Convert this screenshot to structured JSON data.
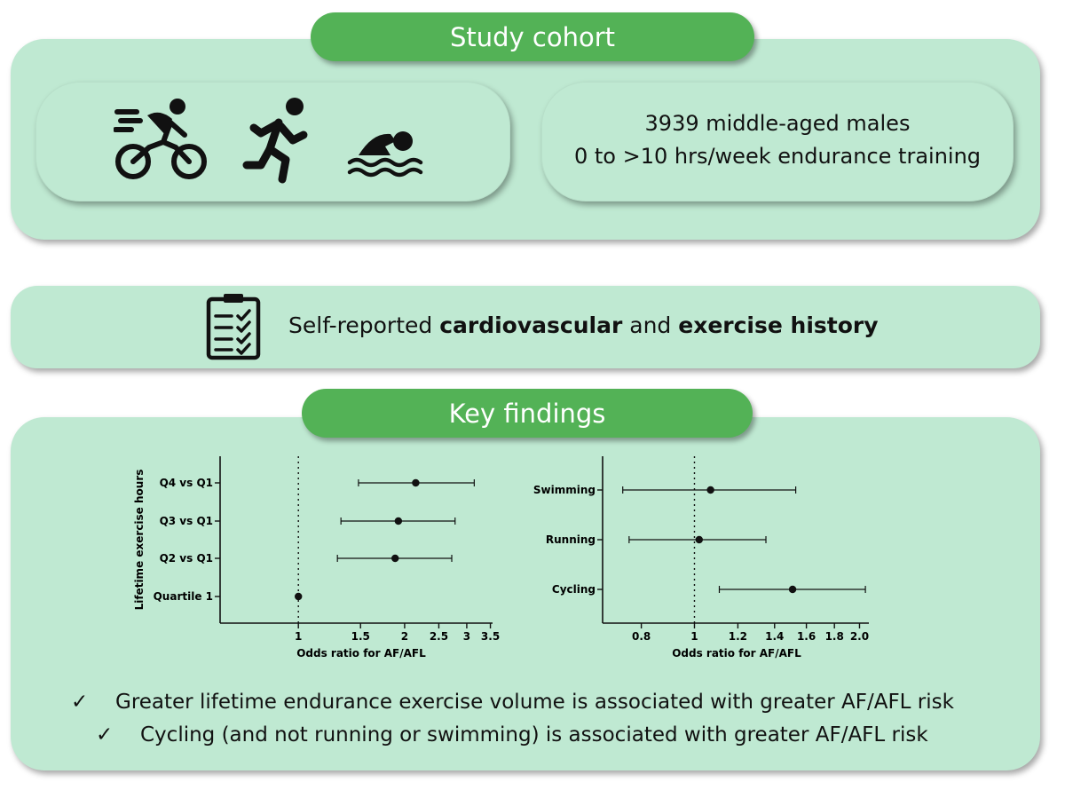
{
  "study_cohort": {
    "title": "Study cohort",
    "icons": [
      "cyclist-icon",
      "runner-icon",
      "swimmer-icon"
    ],
    "line1": "3939 middle-aged males",
    "line2": "0 to >10 hrs/week endurance training"
  },
  "history": {
    "icon": "clipboard-checklist-icon",
    "prefix": "Self-reported ",
    "bold1": "cardiovascular",
    "middle": " and ",
    "bold2": "exercise history"
  },
  "key_findings": {
    "title": "Key findings",
    "findings": [
      {
        "check": "✓",
        "text": "Greater lifetime endurance exercise volume is associated with greater AF/AFL risk"
      },
      {
        "check": "✓",
        "text": "Cycling (and not running or swimming) is associated with greater AF/AFL risk"
      }
    ]
  },
  "colors": {
    "panel": "#bfe9d2",
    "pill": "#53b256",
    "pill_text": "#ffffff"
  },
  "chart_data": [
    {
      "type": "scatter",
      "subtype": "forest-plot",
      "ylabel": "Lifetime exercise hours",
      "xlabel": "Odds ratio for AF/AFL",
      "x_scale": "log",
      "x_ticks": [
        1,
        1.5,
        2,
        2.5,
        3,
        3.5
      ],
      "x_tick_labels": [
        "1",
        "1.5",
        "2",
        "2.5",
        "3",
        "3.5"
      ],
      "xlim": [
        0.6,
        3.55
      ],
      "reference_line": 1,
      "categories": [
        "Q4 vs Q1",
        "Q3 vs Q1",
        "Q2 vs Q1",
        "Quartile 1"
      ],
      "or": [
        2.15,
        1.92,
        1.88,
        1.0
      ],
      "ci_low": [
        1.48,
        1.32,
        1.29,
        1.0
      ],
      "ci_high": [
        3.15,
        2.78,
        2.72,
        1.0
      ]
    },
    {
      "type": "scatter",
      "subtype": "forest-plot",
      "ylabel": "",
      "xlabel": "Odds ratio for AF/AFL",
      "x_scale": "log",
      "x_ticks": [
        0.8,
        1,
        1.2,
        1.4,
        1.6,
        1.8,
        2.0
      ],
      "x_tick_labels": [
        "0.8",
        "1",
        "1.2",
        "1.4",
        "1.6",
        "1.8",
        "2.0"
      ],
      "xlim": [
        0.68,
        2.08
      ],
      "reference_line": 1,
      "categories": [
        "Swimming",
        "Running",
        "Cycling"
      ],
      "or": [
        1.07,
        1.02,
        1.51
      ],
      "ci_low": [
        0.74,
        0.76,
        1.11
      ],
      "ci_high": [
        1.53,
        1.35,
        2.05
      ]
    }
  ]
}
